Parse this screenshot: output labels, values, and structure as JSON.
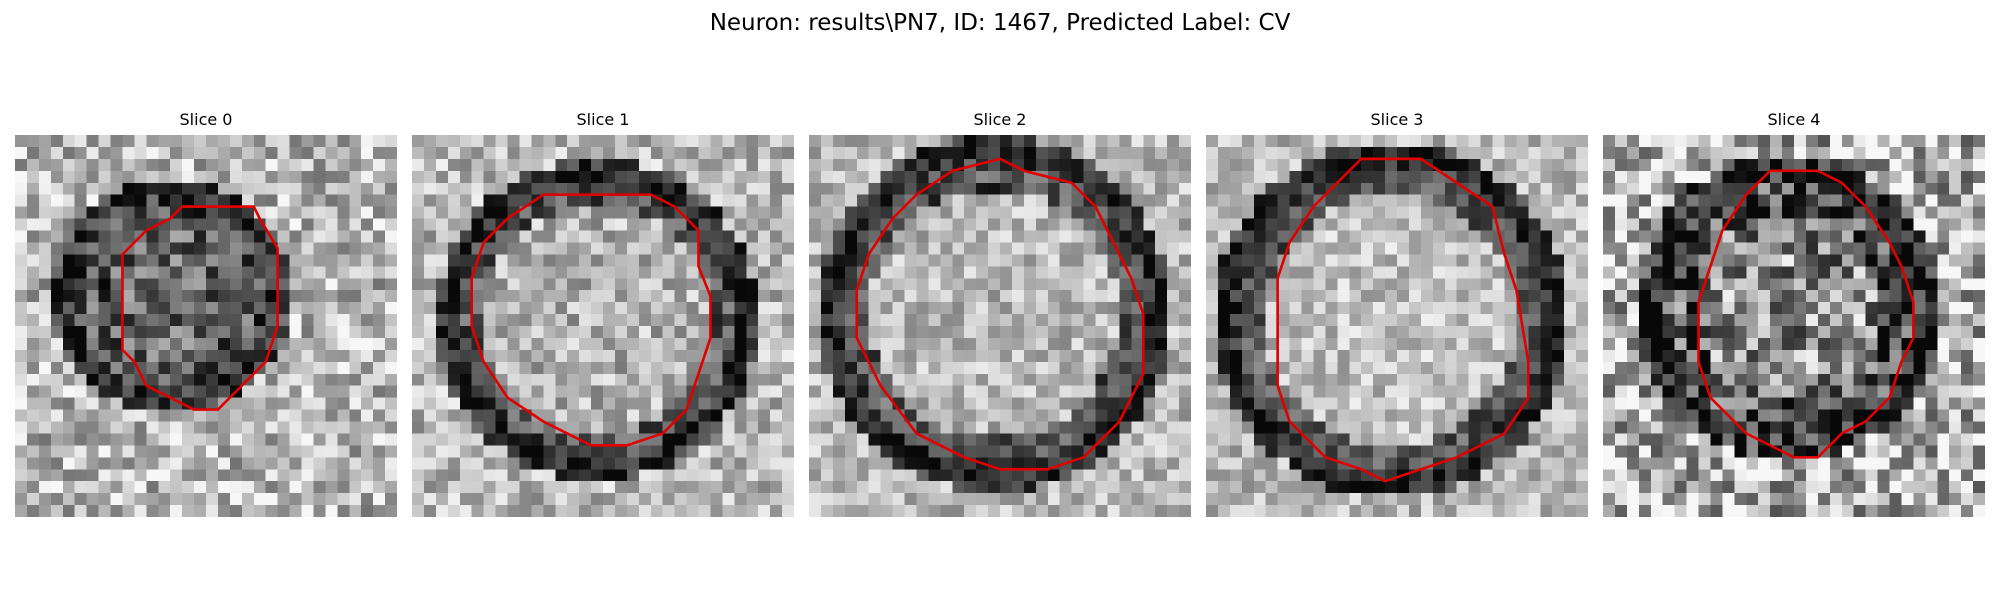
{
  "figure": {
    "title": "Neuron: results\\PN7, ID: 1467, Predicted Label: CV"
  },
  "colors": {
    "contour": "#e00000",
    "background": "#ffffff"
  },
  "slices": [
    {
      "title": "Slice 0",
      "image": "grayscale cell crop with dark ring and red segmentation contour",
      "seed": 11
    },
    {
      "title": "Slice 1",
      "image": "grayscale cell crop with dark ring and red segmentation contour",
      "seed": 23
    },
    {
      "title": "Slice 2",
      "image": "grayscale cell crop with dark ring and red segmentation contour",
      "seed": 37
    },
    {
      "title": "Slice 3",
      "image": "grayscale cell crop with dark ring and red segmentation contour",
      "seed": 41
    },
    {
      "title": "Slice 4",
      "image": "grayscale cell crop with dark ring and red segmentation contour",
      "seed": 59
    }
  ]
}
